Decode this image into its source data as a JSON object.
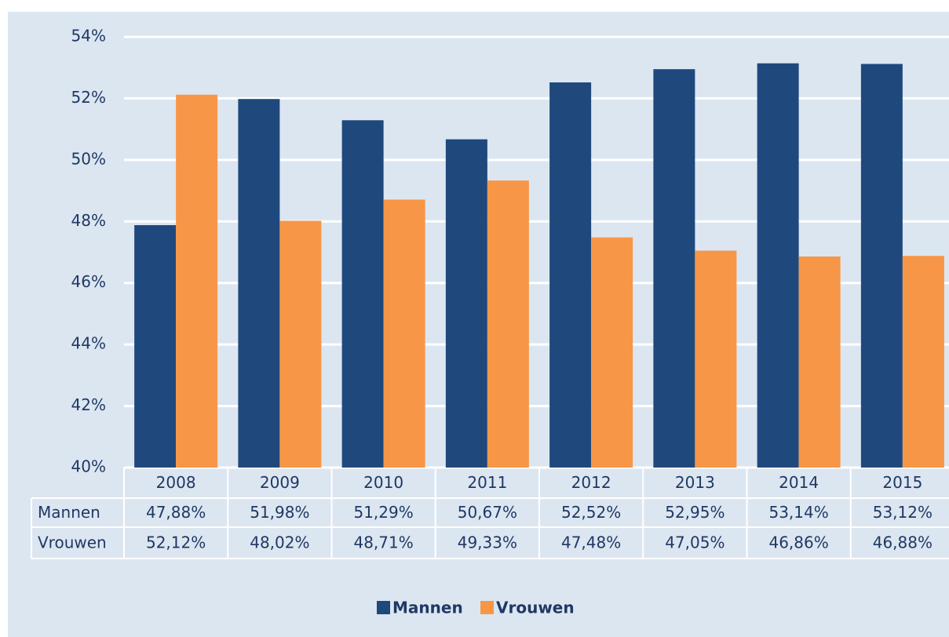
{
  "chart_data": {
    "type": "bar",
    "categories": [
      "2008",
      "2009",
      "2010",
      "2011",
      "2012",
      "2013",
      "2014",
      "2015"
    ],
    "series": [
      {
        "name": "Mannen",
        "color": "#1f497d",
        "values": [
          47.88,
          51.98,
          51.29,
          50.67,
          52.52,
          52.95,
          53.14,
          53.12
        ],
        "value_labels": [
          "47,88%",
          "51,98%",
          "51,29%",
          "50,67%",
          "52,52%",
          "52,95%",
          "53,14%",
          "53,12%"
        ]
      },
      {
        "name": "Vrouwen",
        "color": "#f79646",
        "values": [
          52.12,
          48.02,
          48.71,
          49.33,
          47.48,
          47.05,
          46.86,
          46.88
        ],
        "value_labels": [
          "52,12%",
          "48,02%",
          "48,71%",
          "49,33%",
          "47,48%",
          "47,05%",
          "46,86%",
          "46,88%"
        ]
      }
    ],
    "ylim": [
      40,
      54
    ],
    "yticks": [
      {
        "value": 40,
        "label": "40%"
      },
      {
        "value": 42,
        "label": "42%"
      },
      {
        "value": 44,
        "label": "44%"
      },
      {
        "value": 46,
        "label": "46%"
      },
      {
        "value": 48,
        "label": "48%"
      },
      {
        "value": 50,
        "label": "50%"
      },
      {
        "value": 52,
        "label": "52%"
      },
      {
        "value": 54,
        "label": "54%"
      }
    ],
    "grid": true
  }
}
